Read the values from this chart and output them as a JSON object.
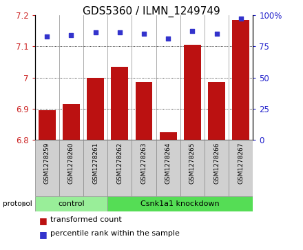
{
  "title": "GDS5360 / ILMN_1249749",
  "samples": [
    "GSM1278259",
    "GSM1278260",
    "GSM1278261",
    "GSM1278262",
    "GSM1278263",
    "GSM1278264",
    "GSM1278265",
    "GSM1278266",
    "GSM1278267"
  ],
  "transformed_count": [
    6.895,
    6.915,
    7.0,
    7.035,
    6.985,
    6.825,
    7.105,
    6.985,
    7.185
  ],
  "percentile_rank": [
    83,
    84,
    86,
    86,
    85,
    81,
    87,
    85,
    97
  ],
  "ylim_left": [
    6.8,
    7.2
  ],
  "ylim_right": [
    0,
    100
  ],
  "yticks_left": [
    6.8,
    6.9,
    7.0,
    7.1,
    7.2
  ],
  "ytick_labels_left": [
    "6.8",
    "6.9",
    "7",
    "7.1",
    "7.2"
  ],
  "yticks_right": [
    0,
    25,
    50,
    75,
    100
  ],
  "ytick_labels_right": [
    "0",
    "25",
    "50",
    "75",
    "100%"
  ],
  "grid_lines": [
    6.9,
    7.0,
    7.1
  ],
  "bar_color": "#bb1111",
  "dot_color": "#3333cc",
  "bar_width": 0.7,
  "control_count": 3,
  "protocol_label_control": "control",
  "protocol_label_treatment": "Csnk1a1 knockdown",
  "protocol_color_control": "#99ee99",
  "protocol_color_treatment": "#55dd55",
  "protocol_row_label": "protocol",
  "legend_bar_label": "transformed count",
  "legend_dot_label": "percentile rank within the sample",
  "title_fontsize": 11,
  "tick_label_color_left": "#cc2222",
  "tick_label_color_right": "#2222cc",
  "sample_label_bg": "#d0d0d0",
  "sample_label_fontsize": 6.5,
  "protocol_fontsize": 8,
  "legend_fontsize": 8
}
